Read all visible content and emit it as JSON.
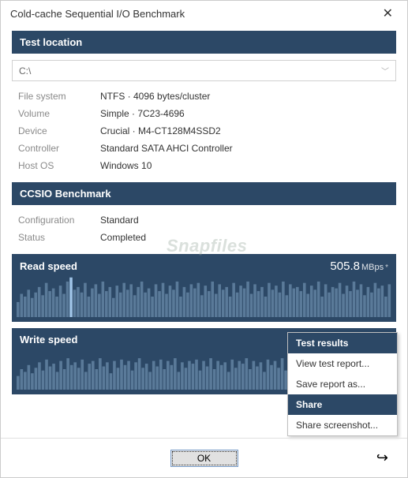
{
  "window": {
    "title": "Cold-cache Sequential I/O Benchmark"
  },
  "sections": {
    "test_location": {
      "header": "Test location",
      "path": "C:\\"
    },
    "details": [
      {
        "key": "File system",
        "val": "NTFS   ·   4096 bytes/cluster"
      },
      {
        "key": "Volume",
        "val": "Simple   ·   7C23-4696"
      },
      {
        "key": "Device",
        "val": "Crucial   ·   M4-CT128M4SSD2"
      },
      {
        "key": "Controller",
        "val": "Standard SATA AHCI Controller"
      },
      {
        "key": "Host OS",
        "val": "Windows 10"
      }
    ],
    "benchmark": {
      "header": "CCSIO Benchmark",
      "rows": [
        {
          "key": "Configuration",
          "val": "Standard"
        },
        {
          "key": "Status",
          "val": "Completed"
        }
      ]
    }
  },
  "charts": {
    "read": {
      "title": "Read speed",
      "value": "505.8",
      "unit": "MBps",
      "star": "*",
      "panel_color": "#2c4866",
      "bar_color": "#5a7a99",
      "highlight_color": "#9fc3e6",
      "highlight_index": 15,
      "bars": [
        22,
        34,
        30,
        40,
        28,
        36,
        44,
        32,
        50,
        38,
        42,
        30,
        46,
        34,
        52,
        58,
        40,
        44,
        36,
        50,
        30,
        42,
        48,
        34,
        52,
        38,
        44,
        28,
        46,
        36,
        50,
        40,
        48,
        32,
        44,
        52,
        36,
        42,
        30,
        48,
        38,
        50,
        34,
        46,
        40,
        52,
        30,
        44,
        36,
        48,
        42,
        50,
        32,
        46,
        38,
        52,
        34,
        48,
        40,
        44,
        30,
        50,
        36,
        46,
        42,
        52,
        34,
        48,
        38,
        44,
        30,
        50,
        40,
        46,
        36,
        52,
        32,
        48,
        42,
        44,
        38,
        50,
        34,
        46,
        40,
        52,
        30,
        48,
        36,
        44,
        42,
        50,
        34,
        46,
        38,
        52,
        40,
        48,
        32,
        44,
        36,
        50,
        42,
        46,
        30,
        48
      ]
    },
    "write": {
      "title": "Write speed",
      "panel_color": "#2c4866",
      "bar_color": "#5a7a99",
      "bars": [
        20,
        30,
        26,
        36,
        24,
        32,
        40,
        28,
        44,
        34,
        38,
        26,
        42,
        30,
        46,
        36,
        40,
        32,
        44,
        26,
        38,
        42,
        30,
        46,
        34,
        40,
        24,
        42,
        32,
        44,
        36,
        42,
        28,
        40,
        46,
        32,
        38,
        26,
        42,
        34,
        44,
        30,
        42,
        36,
        46,
        26,
        40,
        32,
        42,
        38,
        44,
        28,
        42,
        34,
        46,
        30,
        42,
        36,
        40,
        26,
        44,
        32,
        42,
        38,
        46,
        30,
        42,
        34,
        40,
        26,
        44,
        36,
        42,
        32,
        46,
        28,
        42,
        38,
        40,
        34,
        44,
        30,
        42,
        36,
        46,
        26,
        42,
        32,
        40,
        38,
        44,
        30,
        42,
        34,
        46,
        36,
        42,
        28,
        40,
        32,
        44,
        38,
        42,
        26,
        42
      ]
    }
  },
  "menu": {
    "h1": "Test results",
    "i1": "View test report...",
    "i2": "Save report as...",
    "h2": "Share",
    "i3": "Share screenshot..."
  },
  "buttons": {
    "ok": "OK"
  },
  "watermark": "Snapfiles"
}
